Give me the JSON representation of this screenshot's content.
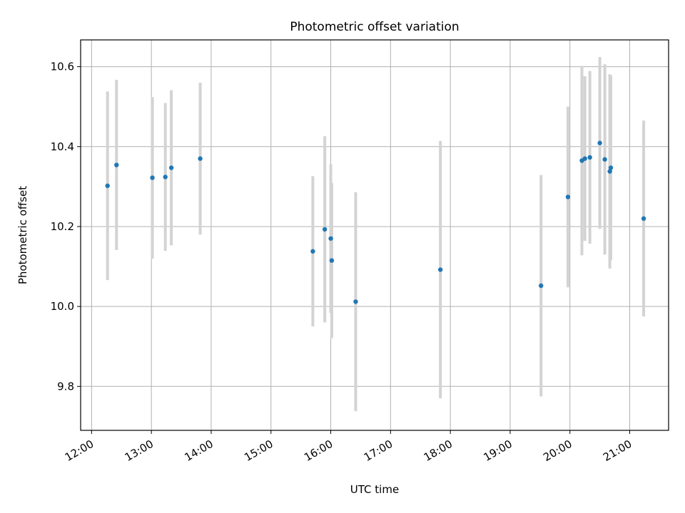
{
  "chart_data": {
    "type": "scatter",
    "title": "Photometric offset variation",
    "xlabel": "UTC time",
    "ylabel": "Photometric offset",
    "x_tick_labels": [
      "12:00",
      "13:00",
      "14:00",
      "15:00",
      "16:00",
      "17:00",
      "18:00",
      "19:00",
      "20:00",
      "21:00"
    ],
    "x_tick_hours": [
      12,
      13,
      14,
      15,
      16,
      17,
      18,
      19,
      20,
      21
    ],
    "y_ticks": [
      9.8,
      10.0,
      10.2,
      10.4,
      10.6
    ],
    "y_tick_labels": [
      "9.8",
      "10.0",
      "10.2",
      "10.4",
      "10.6"
    ],
    "xlim": [
      "11:49",
      "21:39"
    ],
    "ylim": [
      9.69,
      10.667
    ],
    "grid": true,
    "colors": {
      "point": "#1f77b4",
      "errorbar": "#d3d3d3",
      "grid": "#b0b0b0"
    },
    "points": [
      {
        "time": "12:16",
        "y": 10.302,
        "err": 0.236
      },
      {
        "time": "12:25",
        "y": 10.354,
        "err": 0.213
      },
      {
        "time": "13:01",
        "y": 10.322,
        "err": 0.202
      },
      {
        "time": "13:14",
        "y": 10.324,
        "err": 0.185
      },
      {
        "time": "13:20",
        "y": 10.347,
        "err": 0.194
      },
      {
        "time": "13:49",
        "y": 10.37,
        "err": 0.19
      },
      {
        "time": "15:42",
        "y": 10.138,
        "err": 0.188
      },
      {
        "time": "15:54",
        "y": 10.193,
        "err": 0.233
      },
      {
        "time": "16:00",
        "y": 10.17,
        "err": 0.186
      },
      {
        "time": "16:01",
        "y": 10.115,
        "err": 0.194
      },
      {
        "time": "16:25",
        "y": 10.012,
        "err": 0.274
      },
      {
        "time": "17:50",
        "y": 10.092,
        "err": 0.322
      },
      {
        "time": "19:31",
        "y": 10.052,
        "err": 0.277
      },
      {
        "time": "19:58",
        "y": 10.274,
        "err": 0.226
      },
      {
        "time": "20:12",
        "y": 10.365,
        "err": 0.237
      },
      {
        "time": "20:15",
        "y": 10.37,
        "err": 0.206
      },
      {
        "time": "20:20",
        "y": 10.373,
        "err": 0.216
      },
      {
        "time": "20:30",
        "y": 10.409,
        "err": 0.215
      },
      {
        "time": "20:35",
        "y": 10.368,
        "err": 0.238
      },
      {
        "time": "20:40",
        "y": 10.338,
        "err": 0.243
      },
      {
        "time": "20:41",
        "y": 10.347,
        "err": 0.231
      },
      {
        "time": "21:14",
        "y": 10.22,
        "err": 0.245
      }
    ]
  }
}
